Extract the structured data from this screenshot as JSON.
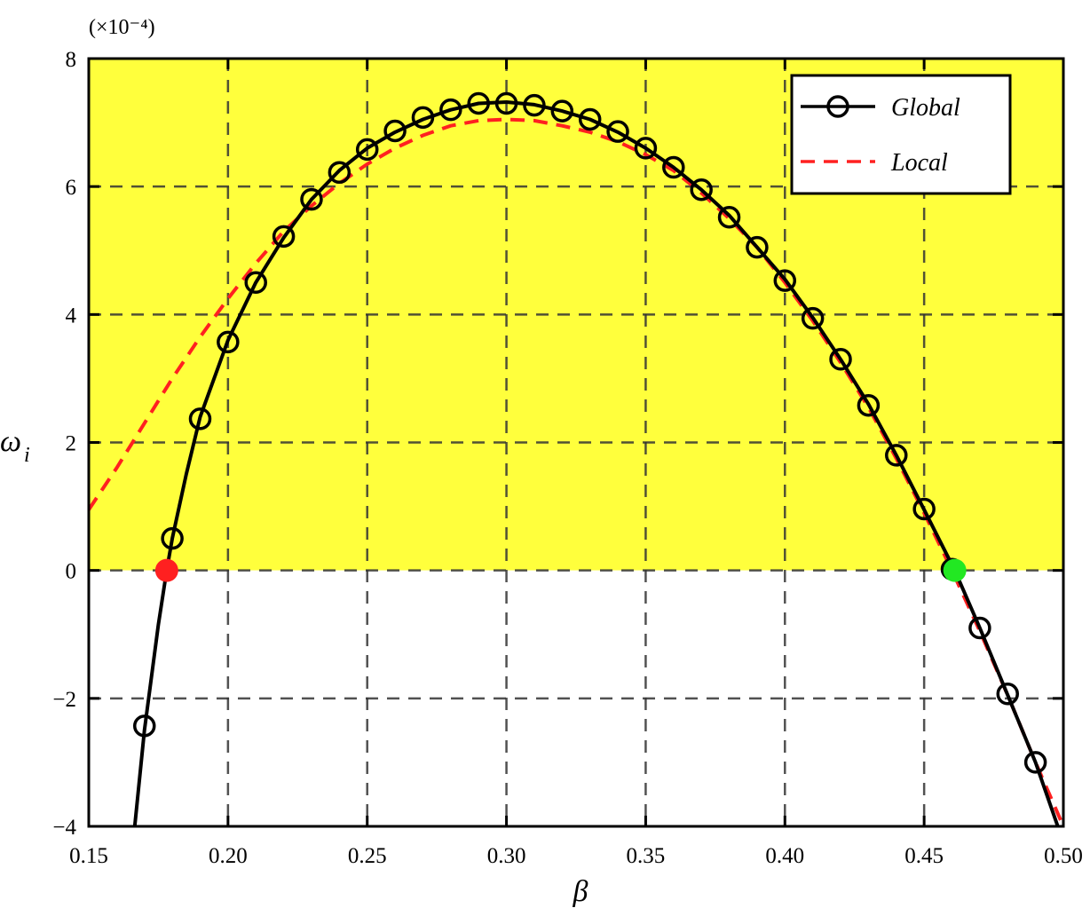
{
  "chart_data": {
    "type": "line",
    "exponent_label": "(×10⁻⁴)",
    "xlabel": "β",
    "ylabel": "ω",
    "ylabel_subscript": "i",
    "xlim": [
      0.15,
      0.5
    ],
    "ylim": [
      -4,
      8
    ],
    "x_ticks": [
      0.15,
      0.2,
      0.25,
      0.3,
      0.35,
      0.4,
      0.45,
      0.5
    ],
    "x_tick_labels": [
      "0.15",
      "0.20",
      "0.25",
      "0.30",
      "0.35",
      "0.40",
      "0.45",
      "0.50"
    ],
    "y_ticks": [
      -4,
      -2,
      0,
      2,
      4,
      6,
      8
    ],
    "y_tick_labels": [
      "−4",
      "−2",
      "0",
      "2",
      "4",
      "6",
      "8"
    ],
    "grid": true,
    "unstable_region_color": "#ffff3c",
    "legend_position": "top-right",
    "series": [
      {
        "name": "Global",
        "style": "solid-black-with-open-circles",
        "color": "#000000",
        "x": [
          0.1665,
          0.17,
          0.175,
          0.178,
          0.18,
          0.185,
          0.19,
          0.2,
          0.21,
          0.22,
          0.23,
          0.24,
          0.25,
          0.26,
          0.27,
          0.28,
          0.29,
          0.3,
          0.31,
          0.32,
          0.33,
          0.34,
          0.35,
          0.36,
          0.37,
          0.38,
          0.39,
          0.4,
          0.41,
          0.42,
          0.43,
          0.44,
          0.45,
          0.461,
          0.47,
          0.48,
          0.49,
          0.498
        ],
        "y": [
          -4.0,
          -2.5,
          -0.85,
          0.0,
          0.5,
          1.5,
          2.4,
          3.6,
          4.5,
          5.2,
          5.8,
          6.25,
          6.6,
          6.85,
          7.05,
          7.2,
          7.3,
          7.32,
          7.28,
          7.18,
          7.05,
          6.85,
          6.6,
          6.3,
          5.95,
          5.55,
          5.05,
          4.55,
          3.95,
          3.3,
          2.6,
          1.8,
          0.95,
          0.0,
          -0.9,
          -1.95,
          -3.0,
          -4.0
        ],
        "markers_x": [
          0.17,
          0.18,
          0.19,
          0.2,
          0.21,
          0.22,
          0.23,
          0.24,
          0.25,
          0.26,
          0.27,
          0.28,
          0.29,
          0.3,
          0.31,
          0.32,
          0.33,
          0.34,
          0.35,
          0.36,
          0.37,
          0.38,
          0.39,
          0.4,
          0.41,
          0.42,
          0.43,
          0.44,
          0.45,
          0.46,
          0.47,
          0.48,
          0.49
        ],
        "markers_y": [
          -2.43,
          0.5,
          2.37,
          3.57,
          4.5,
          5.22,
          5.8,
          6.22,
          6.58,
          6.87,
          7.08,
          7.2,
          7.3,
          7.3,
          7.27,
          7.18,
          7.05,
          6.86,
          6.6,
          6.3,
          5.95,
          5.52,
          5.05,
          4.53,
          3.94,
          3.3,
          2.58,
          1.8,
          0.96,
          0.02,
          -0.9,
          -1.93,
          -3.0
        ]
      },
      {
        "name": "Local",
        "style": "dashed-red",
        "color": "#ff2020",
        "x": [
          0.15,
          0.16,
          0.17,
          0.18,
          0.19,
          0.2,
          0.21,
          0.22,
          0.23,
          0.24,
          0.25,
          0.26,
          0.27,
          0.28,
          0.29,
          0.3,
          0.31,
          0.32,
          0.33,
          0.34,
          0.35,
          0.36,
          0.37,
          0.38,
          0.39,
          0.4,
          0.41,
          0.42,
          0.43,
          0.44,
          0.45,
          0.46,
          0.47,
          0.48,
          0.49,
          0.5
        ],
        "y": [
          0.95,
          1.6,
          2.3,
          3.0,
          3.65,
          4.25,
          4.8,
          5.3,
          5.7,
          6.05,
          6.35,
          6.6,
          6.8,
          6.95,
          7.03,
          7.05,
          7.03,
          6.95,
          6.85,
          6.7,
          6.5,
          6.25,
          5.9,
          5.5,
          5.05,
          4.5,
          3.9,
          3.25,
          2.55,
          1.75,
          0.9,
          0.0,
          -0.95,
          -1.95,
          -3.0,
          -4.0
        ]
      }
    ],
    "highlight_points": [
      {
        "x": 0.178,
        "y": 0.0,
        "color": "#ff2020"
      },
      {
        "x": 0.461,
        "y": 0.0,
        "color": "#22e822"
      }
    ]
  }
}
